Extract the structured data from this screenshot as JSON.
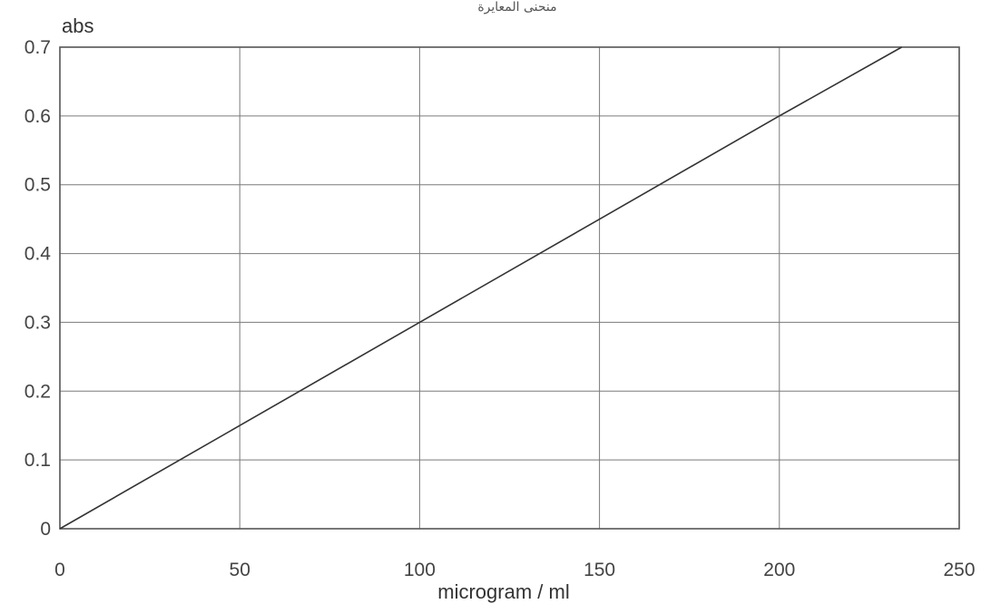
{
  "top_caption": "منحنى المعايرة",
  "chart_data": {
    "type": "line",
    "title": "",
    "xlabel": "microgram / ml",
    "ylabel": "abs",
    "xlim": [
      0,
      250
    ],
    "ylim": [
      0,
      0.7
    ],
    "x_ticks": [
      0,
      50,
      100,
      150,
      200,
      250
    ],
    "x_tick_labels": [
      "0",
      "50",
      "100",
      "150",
      "200",
      "250"
    ],
    "y_ticks": [
      0,
      0.1,
      0.2,
      0.3,
      0.4,
      0.5,
      0.6,
      0.7
    ],
    "y_tick_labels": [
      "0",
      "0.1",
      "0.2",
      "0.3",
      "0.4",
      "0.5",
      "0.6",
      "0.7"
    ],
    "grid": true,
    "legend": "none",
    "series": [
      {
        "x": [
          0,
          50,
          100,
          150,
          200,
          234
        ],
        "y": [
          0,
          0.15,
          0.3,
          0.45,
          0.6,
          0.7
        ]
      }
    ],
    "colors": {
      "line": "#333333",
      "grid": "#7a7a7a",
      "frame": "#555555",
      "text": "#444444"
    }
  }
}
